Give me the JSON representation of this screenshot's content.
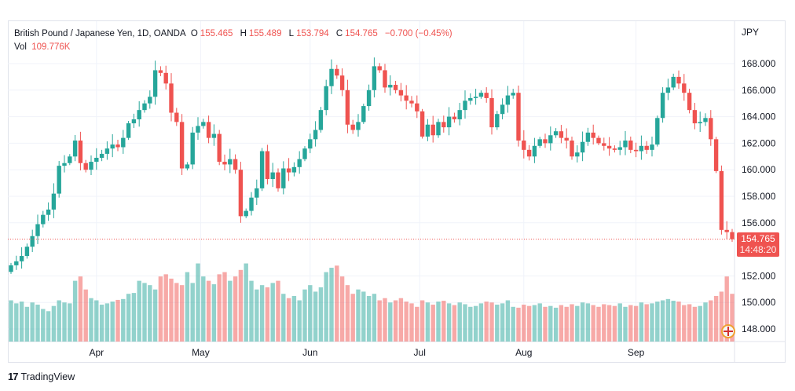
{
  "legend": {
    "symbol": "British Pound / Japanese Yen, 1D, OANDA",
    "open_label": "O",
    "open": "155.465",
    "high_label": "H",
    "high": "155.489",
    "low_label": "L",
    "low": "153.794",
    "close_label": "C",
    "close": "154.765",
    "change": "−0.700 (−0.45%)",
    "vol_label": "Vol",
    "vol": "109.776K"
  },
  "price_axis": {
    "currency": "JPY",
    "ticks": [
      "168.000",
      "166.000",
      "164.000",
      "162.000",
      "160.000",
      "158.000",
      "156.000",
      "152.000",
      "150.000",
      "148.000"
    ]
  },
  "last_price": {
    "value": "154.765",
    "countdown": "14:48:20"
  },
  "time_axis": {
    "labels": [
      "Apr",
      "May",
      "Jun",
      "Jul",
      "Aug",
      "Sep"
    ]
  },
  "footer": {
    "brand": "TradingView"
  },
  "colors": {
    "up": "#26a69a",
    "down": "#ef5350"
  },
  "chart_data": {
    "type": "candlestick",
    "title": "British Pound / Japanese Yen, 1D, OANDA",
    "ylim": [
      147,
      171
    ],
    "y_ticks": [
      148,
      150,
      152,
      156,
      158,
      160,
      162,
      164,
      166,
      168
    ],
    "month_labels": [
      {
        "label": "Apr",
        "index": 16
      },
      {
        "label": "May",
        "index": 35.5
      },
      {
        "label": "Jun",
        "index": 56
      },
      {
        "label": "Jul",
        "index": 76.5
      },
      {
        "label": "Aug",
        "index": 96
      },
      {
        "label": "Sep",
        "index": 117
      }
    ],
    "close": [
      152.8,
      153.1,
      153.5,
      154.2,
      155.0,
      155.9,
      156.6,
      157.0,
      158.2,
      160.3,
      160.5,
      161.0,
      162.2,
      160.5,
      160.0,
      160.6,
      160.9,
      161.2,
      161.6,
      161.9,
      161.7,
      162.4,
      163.5,
      163.8,
      164.5,
      165.0,
      165.5,
      167.5,
      167.3,
      166.5,
      164.3,
      163.6,
      160.1,
      160.4,
      162.8,
      163.3,
      163.6,
      162.4,
      162.7,
      160.6,
      160.4,
      160.8,
      160.0,
      156.5,
      156.9,
      157.9,
      158.6,
      161.4,
      159.3,
      159.8,
      158.6,
      160.1,
      159.8,
      160.2,
      160.8,
      161.6,
      162.3,
      163.0,
      164.5,
      166.3,
      167.6,
      167.1,
      166.0,
      163.4,
      163.0,
      163.6,
      164.8,
      166.0,
      167.8,
      167.5,
      166.2,
      166.4,
      166.0,
      165.6,
      165.2,
      165.0,
      164.4,
      162.5,
      163.4,
      162.6,
      163.6,
      163.2,
      164.0,
      163.8,
      164.5,
      165.2,
      165.4,
      165.5,
      165.8,
      165.4,
      163.2,
      164.2,
      164.9,
      165.6,
      165.8,
      162.2,
      161.5,
      161.0,
      161.8,
      162.3,
      162.0,
      162.6,
      162.9,
      162.4,
      162.2,
      161.0,
      161.3,
      162.1,
      162.8,
      162.4,
      162.0,
      161.8,
      161.6,
      161.5,
      161.7,
      162.2,
      161.5,
      161.4,
      161.8,
      161.5,
      161.9,
      163.9,
      165.8,
      166.2,
      167.0,
      166.5,
      165.8,
      164.5,
      163.5,
      163.6,
      163.9,
      162.3,
      159.9,
      155.465,
      155.3,
      154.765
    ],
    "open_first": 152.3,
    "volume_k": [
      95,
      88,
      92,
      80,
      90,
      85,
      75,
      70,
      82,
      95,
      90,
      88,
      140,
      150,
      120,
      100,
      95,
      85,
      88,
      92,
      96,
      98,
      110,
      112,
      140,
      135,
      130,
      120,
      150,
      155,
      145,
      135,
      130,
      160,
      135,
      180,
      150,
      140,
      132,
      155,
      160,
      140,
      150,
      165,
      180,
      140,
      120,
      130,
      125,
      135,
      140,
      110,
      100,
      105,
      95,
      120,
      130,
      115,
      125,
      160,
      170,
      175,
      150,
      130,
      110,
      120,
      115,
      105,
      110,
      95,
      100,
      90,
      95,
      100,
      92,
      88,
      80,
      95,
      90,
      85,
      92,
      94,
      88,
      84,
      90,
      86,
      80,
      82,
      88,
      92,
      90,
      85,
      88,
      95,
      80,
      78,
      85,
      82,
      84,
      88,
      80,
      82,
      78,
      84,
      80,
      86,
      82,
      90,
      88,
      84,
      80,
      86,
      84,
      82,
      88,
      80,
      84,
      82,
      90,
      86,
      88,
      92,
      95,
      98,
      94,
      92,
      84,
      86,
      80,
      82,
      90,
      95,
      105,
      115,
      150,
      110
    ]
  }
}
